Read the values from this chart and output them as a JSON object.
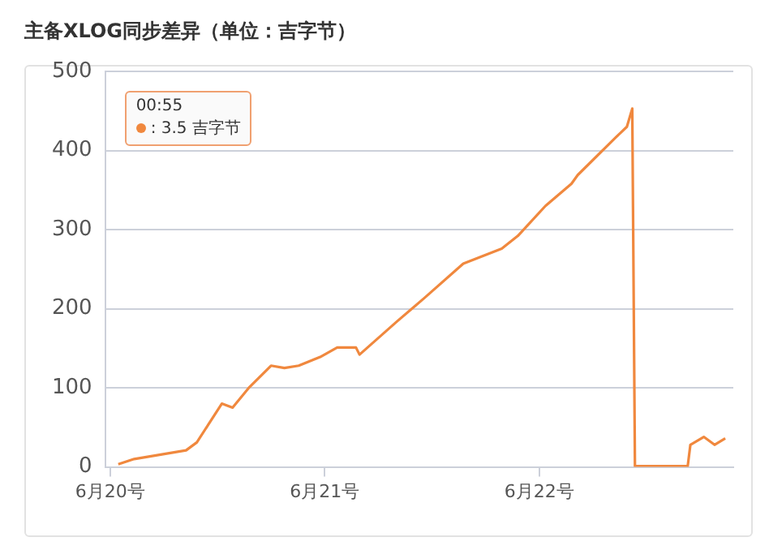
{
  "chart_data": {
    "type": "line",
    "title": "主备XLOG同步差异（单位：吉字节）",
    "x": [
      "--06-20T00:55",
      "--06-20T02:42",
      "--06-20T08:30",
      "--06-20T09:42",
      "--06-20T12:30",
      "--06-20T13:42",
      "--06-20T15:36",
      "--06-20T18:00",
      "--06-20T19:30",
      "--06-20T21:06",
      "--06-20T23:30",
      "--06-21T01:24",
      "--06-21T03:30",
      "--06-21T03:54",
      "--06-21T05:00",
      "--06-21T08:06",
      "--06-21T11:12",
      "--06-21T15:30",
      "--06-21T19:48",
      "--06-21T21:36",
      "--06-22T00:42",
      "--06-22T03:36",
      "--06-22T04:18",
      "--06-22T08:36",
      "--06-22T09:48",
      "--06-22T10:24",
      "--06-22T10:42",
      "--06-22T16:36",
      "--06-22T16:54",
      "--06-22T18:24",
      "--06-22T19:36",
      "--06-22T20:48"
    ],
    "series": [
      {
        "color": "#f0883e",
        "values": [
          3.5,
          10,
          21,
          31,
          80,
          75,
          101,
          128,
          125,
          128,
          139,
          151,
          151,
          142,
          153,
          184,
          214,
          257,
          276,
          292,
          330,
          358,
          369,
          417,
          430,
          453,
          1,
          1,
          28,
          38,
          28,
          36
        ]
      }
    ],
    "xlim": [
      "--06-19T23:27",
      "--06-22T21:42"
    ],
    "xticks": [
      {
        "value": "--06-20",
        "label": "6月20号"
      },
      {
        "value": "--06-21",
        "label": "6月21号"
      },
      {
        "value": "--06-22",
        "label": "6月22号"
      }
    ],
    "ylim": [
      0,
      500
    ],
    "yticks": [
      0,
      100,
      200,
      300,
      400,
      500
    ],
    "grid": "y",
    "legend": false,
    "marker": "none",
    "line_style": "solid",
    "annotations": [
      "00:55\n: 3.5 吉字节"
    ]
  }
}
